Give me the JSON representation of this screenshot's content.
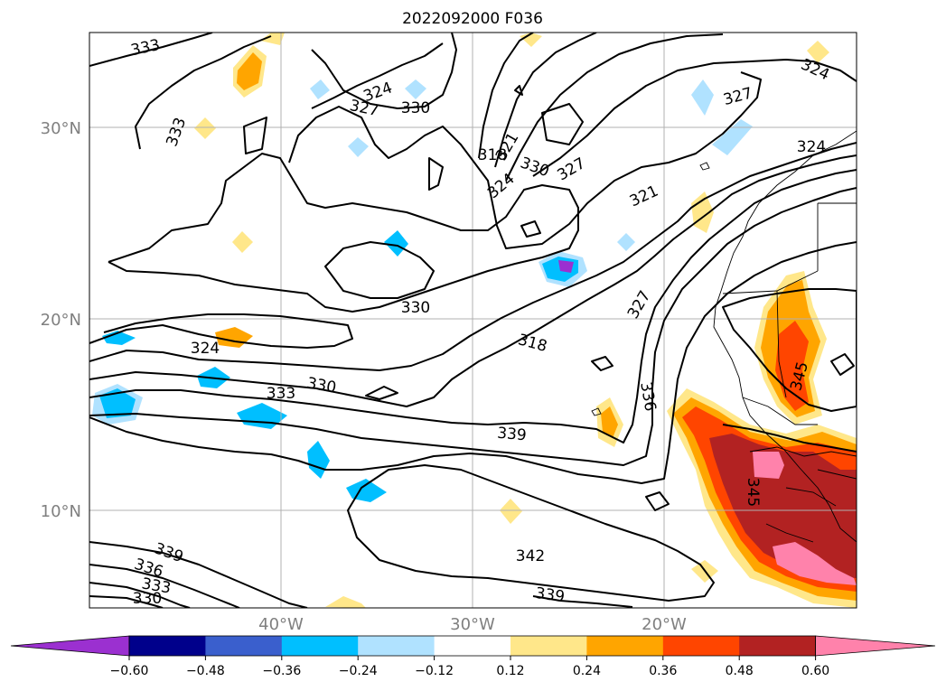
{
  "title": "2022092000 F036",
  "latitude_labels": [
    "30°N",
    "20°N",
    "10°N"
  ],
  "longitude_labels": [
    "40°W",
    "30°W",
    "20°W"
  ],
  "contour_labels": [
    "333",
    "324",
    "327",
    "330",
    "333",
    "318",
    "321",
    "330",
    "327",
    "324",
    "321",
    "324",
    "327",
    "324",
    "330",
    "327",
    "318",
    "336",
    "324",
    "333",
    "330",
    "339",
    "345",
    "345",
    "339",
    "336",
    "333",
    "330",
    "342",
    "339"
  ],
  "colorbar": {
    "tick_labels": [
      "−0.60",
      "−0.48",
      "−0.36",
      "−0.24",
      "−0.12",
      "0.12",
      "0.24",
      "0.36",
      "0.48",
      "0.60"
    ],
    "colors": [
      "#9b30d0",
      "#00008b",
      "#3a5fcd",
      "#00bfff",
      "#b0e2ff",
      "#ffffff",
      "#ffe78a",
      "#ffa500",
      "#ff4500",
      "#b22222",
      "#ff82ab"
    ]
  },
  "colors": {
    "contour": "#000000",
    "axis_label": "#808080",
    "grid": "#b0b0b0"
  }
}
